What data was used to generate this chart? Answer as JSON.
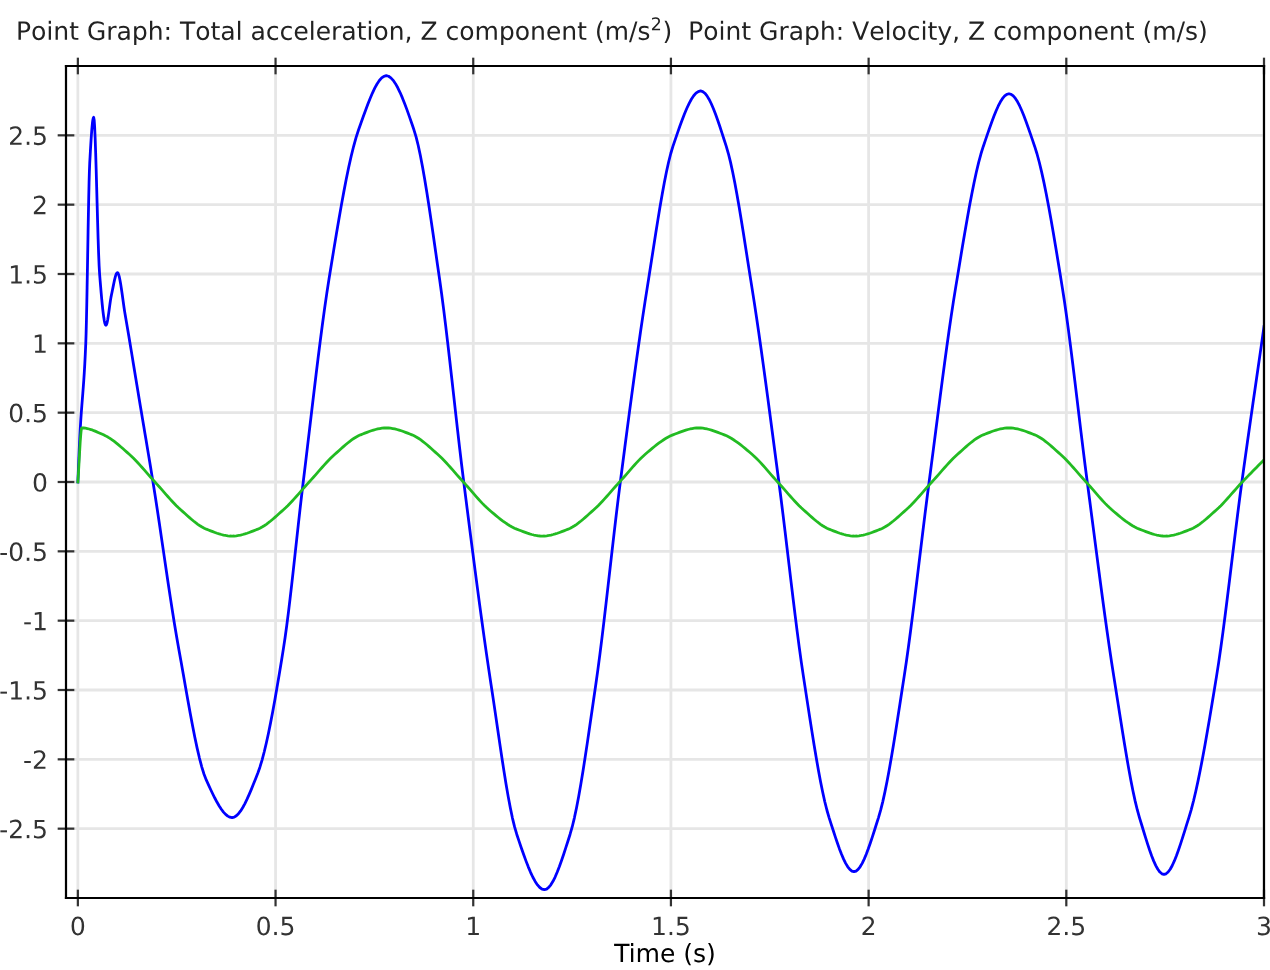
{
  "chart_data": {
    "type": "line",
    "title": "Point Graph: Total acceleration, Z component (m/s$^{2}$)  Point Graph: Velocity, Z component (m/s)",
    "xlabel": "Time (s)",
    "xlim": [
      -0.03,
      3.0
    ],
    "xticks": [
      0,
      0.5,
      1,
      1.5,
      2,
      2.5,
      3
    ],
    "ylim": [
      -3,
      3
    ],
    "yticks": [
      -2.5,
      -2,
      -1.5,
      -1,
      -0.5,
      0,
      0.5,
      1,
      1.5,
      2,
      2.5
    ],
    "grid": true,
    "marker": "none",
    "line_style": "solid",
    "series": [
      {
        "color": "#0000ff",
        "x": [
          0,
          0.005,
          0.02,
          0.03,
          0.04,
          0.055,
          0.071,
          0.085,
          0.1,
          0.12,
          0.155,
          0.19,
          0.255,
          0.325,
          0.39,
          0.455,
          0.52,
          0.57,
          0.635,
          0.71,
          0.78,
          0.85,
          0.915,
          0.976,
          1.045,
          1.11,
          1.18,
          1.245,
          1.31,
          1.372,
          1.44,
          1.505,
          1.575,
          1.64,
          1.705,
          1.773,
          1.835,
          1.9,
          1.963,
          2.025,
          2.09,
          2.153,
          2.22,
          2.29,
          2.355,
          2.42,
          2.49,
          2.553,
          2.62,
          2.685,
          2.747,
          2.81,
          2.88,
          2.944,
          3.0
        ],
        "values": [
          0,
          0.33,
          1.0,
          2.3,
          2.63,
          1.5,
          1.13,
          1.35,
          1.51,
          1.2,
          0.6,
          0,
          -1.2,
          -2.15,
          -2.42,
          -2.1,
          -1.2,
          0,
          1.46,
          2.54,
          2.93,
          2.54,
          1.46,
          0,
          -1.46,
          -2.54,
          -2.94,
          -2.54,
          -1.46,
          0,
          1.4,
          2.42,
          2.82,
          2.42,
          1.4,
          0,
          -1.4,
          -2.42,
          -2.81,
          -2.42,
          -1.4,
          0,
          1.4,
          2.42,
          2.8,
          2.42,
          1.4,
          0,
          -1.4,
          -2.42,
          -2.83,
          -2.42,
          -1.4,
          0,
          1.12
        ]
      },
      {
        "color": "#22bb22",
        "x": [
          0,
          0.01,
          0.065,
          0.13,
          0.195,
          0.26,
          0.325,
          0.39,
          0.455,
          0.52,
          0.585,
          0.65,
          0.715,
          0.78,
          0.845,
          0.91,
          0.975,
          1.04,
          1.11,
          1.175,
          1.24,
          1.305,
          1.37,
          1.435,
          1.505,
          1.57,
          1.635,
          1.705,
          1.77,
          1.835,
          1.9,
          1.965,
          2.03,
          2.095,
          2.16,
          2.225,
          2.29,
          2.355,
          2.42,
          2.485,
          2.55,
          2.615,
          2.685,
          2.75,
          2.815,
          2.88,
          2.945,
          3.0
        ],
        "values": [
          0,
          0.39,
          0.34,
          0.2,
          0,
          -0.2,
          -0.34,
          -0.39,
          -0.34,
          -0.2,
          0,
          0.2,
          0.34,
          0.39,
          0.34,
          0.2,
          0,
          -0.2,
          -0.34,
          -0.39,
          -0.34,
          -0.2,
          0,
          0.2,
          0.34,
          0.39,
          0.34,
          0.2,
          0,
          -0.2,
          -0.34,
          -0.39,
          -0.34,
          -0.2,
          0,
          0.2,
          0.34,
          0.39,
          0.34,
          0.2,
          0,
          -0.2,
          -0.34,
          -0.39,
          -0.34,
          -0.2,
          0,
          0.16
        ]
      }
    ]
  }
}
